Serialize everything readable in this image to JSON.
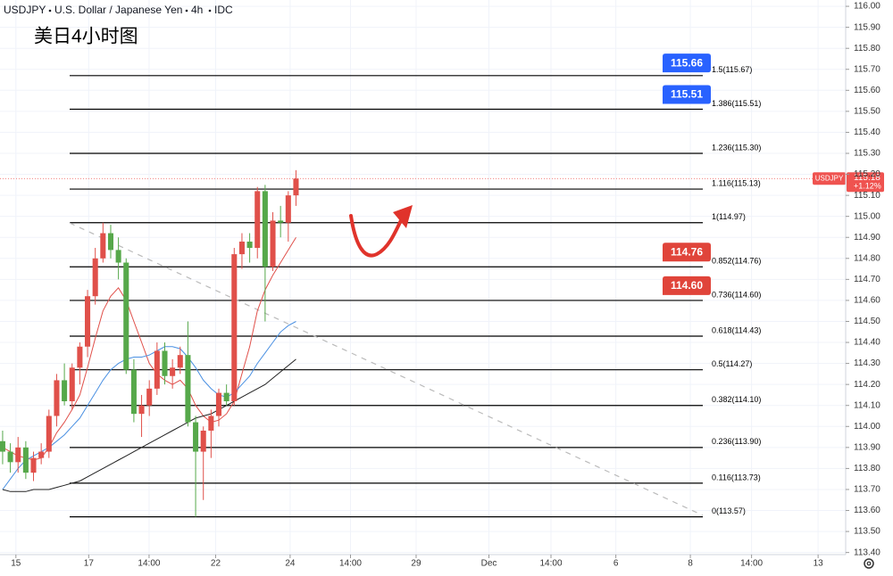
{
  "chart_data": {
    "type": "candlestick",
    "symbol_info": [
      "USDJPY",
      "U.S. Dollar / Japanese Yen",
      "4h",
      "IDC"
    ],
    "annotation": "美日4小时图",
    "up_color": "#e0504a",
    "down_color": "#56a84a",
    "candles": [
      {
        "open": 113.93,
        "high": 113.98,
        "low": 113.82,
        "close": 113.88
      },
      {
        "open": 113.88,
        "high": 113.92,
        "low": 113.78,
        "close": 113.83
      },
      {
        "open": 113.83,
        "high": 113.95,
        "low": 113.78,
        "close": 113.9
      },
      {
        "open": 113.9,
        "high": 113.93,
        "low": 113.75,
        "close": 113.78
      },
      {
        "open": 113.78,
        "high": 113.88,
        "low": 113.74,
        "close": 113.85
      },
      {
        "open": 113.85,
        "high": 113.92,
        "low": 113.82,
        "close": 113.88
      },
      {
        "open": 113.88,
        "high": 114.08,
        "low": 113.85,
        "close": 114.05
      },
      {
        "open": 114.05,
        "high": 114.25,
        "low": 114.0,
        "close": 114.22
      },
      {
        "open": 114.22,
        "high": 114.3,
        "low": 114.1,
        "close": 114.12
      },
      {
        "open": 114.12,
        "high": 114.3,
        "low": 114.08,
        "close": 114.28
      },
      {
        "open": 114.28,
        "high": 114.4,
        "low": 114.2,
        "close": 114.38
      },
      {
        "open": 114.38,
        "high": 114.65,
        "low": 114.33,
        "close": 114.62
      },
      {
        "open": 114.62,
        "high": 114.85,
        "low": 114.58,
        "close": 114.8
      },
      {
        "open": 114.8,
        "high": 114.97,
        "low": 114.78,
        "close": 114.92
      },
      {
        "open": 114.92,
        "high": 114.96,
        "low": 114.8,
        "close": 114.84
      },
      {
        "open": 114.84,
        "high": 114.9,
        "low": 114.7,
        "close": 114.78
      },
      {
        "open": 114.78,
        "high": 114.8,
        "low": 114.25,
        "close": 114.27
      },
      {
        "open": 114.27,
        "high": 114.32,
        "low": 114.02,
        "close": 114.06
      },
      {
        "open": 114.06,
        "high": 114.15,
        "low": 113.95,
        "close": 114.1
      },
      {
        "open": 114.1,
        "high": 114.22,
        "low": 114.05,
        "close": 114.18
      },
      {
        "open": 114.18,
        "high": 114.4,
        "low": 114.15,
        "close": 114.36
      },
      {
        "open": 114.36,
        "high": 114.4,
        "low": 114.2,
        "close": 114.24
      },
      {
        "open": 114.24,
        "high": 114.32,
        "low": 114.18,
        "close": 114.28
      },
      {
        "open": 114.28,
        "high": 114.38,
        "low": 114.25,
        "close": 114.34
      },
      {
        "open": 114.34,
        "high": 114.5,
        "low": 114.0,
        "close": 114.02
      },
      {
        "open": 114.02,
        "high": 114.05,
        "low": 113.57,
        "close": 113.88
      },
      {
        "open": 113.88,
        "high": 114.0,
        "low": 113.65,
        "close": 113.98
      },
      {
        "open": 113.98,
        "high": 114.08,
        "low": 113.85,
        "close": 114.05
      },
      {
        "open": 114.05,
        "high": 114.18,
        "low": 114.0,
        "close": 114.16
      },
      {
        "open": 114.16,
        "high": 114.2,
        "low": 114.1,
        "close": 114.12
      },
      {
        "open": 114.12,
        "high": 114.85,
        "low": 114.1,
        "close": 114.82
      },
      {
        "open": 114.82,
        "high": 114.92,
        "low": 114.75,
        "close": 114.88
      },
      {
        "open": 114.88,
        "high": 114.92,
        "low": 114.78,
        "close": 114.85
      },
      {
        "open": 114.85,
        "high": 115.14,
        "low": 114.8,
        "close": 115.12
      },
      {
        "open": 115.12,
        "high": 115.15,
        "low": 114.5,
        "close": 114.76
      },
      {
        "open": 114.76,
        "high": 115.02,
        "low": 114.74,
        "close": 114.98
      },
      {
        "open": 114.98,
        "high": 115.05,
        "low": 114.9,
        "close": 114.97
      },
      {
        "open": 114.97,
        "high": 115.12,
        "low": 114.88,
        "close": 115.1
      },
      {
        "open": 115.1,
        "high": 115.22,
        "low": 115.05,
        "close": 115.18
      }
    ],
    "moving_averages": [
      {
        "color": "#e0504a",
        "values": [
          113.9,
          113.88,
          113.86,
          113.85,
          113.84,
          113.85,
          113.9,
          113.97,
          114.02,
          114.08,
          114.15,
          114.28,
          114.42,
          114.55,
          114.62,
          114.66,
          114.6,
          114.5,
          114.4,
          114.3,
          114.25,
          114.22,
          114.2,
          114.22,
          114.18,
          114.1,
          114.05,
          114.02,
          114.03,
          114.06,
          114.12,
          114.25,
          114.38,
          114.55,
          114.65,
          114.72,
          114.78,
          114.84,
          114.9
        ]
      },
      {
        "color": "#4a90e2",
        "values": [
          113.7,
          113.75,
          113.8,
          113.84,
          113.86,
          113.88,
          113.9,
          113.93,
          113.96,
          114.0,
          114.04,
          114.1,
          114.16,
          114.22,
          114.27,
          114.3,
          114.32,
          114.33,
          114.33,
          114.34,
          114.36,
          114.38,
          114.38,
          114.37,
          114.33,
          114.28,
          114.22,
          114.18,
          114.15,
          114.14,
          114.16,
          114.2,
          114.24,
          114.3,
          114.35,
          114.4,
          114.45,
          114.48,
          114.5
        ]
      },
      {
        "color": "#222222",
        "values": [
          113.7,
          113.69,
          113.69,
          113.69,
          113.7,
          113.7,
          113.7,
          113.71,
          113.72,
          113.73,
          113.74,
          113.76,
          113.78,
          113.8,
          113.82,
          113.84,
          113.86,
          113.88,
          113.9,
          113.92,
          113.94,
          113.96,
          113.98,
          114.0,
          114.02,
          114.04,
          114.05,
          114.06,
          114.08,
          114.1,
          114.12,
          114.14,
          114.16,
          114.18,
          114.2,
          114.23,
          114.26,
          114.29,
          114.32
        ]
      }
    ],
    "fib_levels": [
      {
        "value": 115.67,
        "label": "1.5(115.67)"
      },
      {
        "value": 115.51,
        "label": "1.386(115.51)"
      },
      {
        "value": 115.3,
        "label": "1.236(115.30)"
      },
      {
        "value": 115.13,
        "label": "1.116(115.13)"
      },
      {
        "value": 114.97,
        "label": "1(114.97)"
      },
      {
        "value": 114.76,
        "label": "0.852(114.76)"
      },
      {
        "value": 114.6,
        "label": "0.736(114.60)"
      },
      {
        "value": 114.43,
        "label": "0.618(114.43)"
      },
      {
        "value": 114.27,
        "label": "0.5(114.27)"
      },
      {
        "value": 114.1,
        "label": "0.382(114.10)"
      },
      {
        "value": 113.9,
        "label": "0.236(113.90)"
      },
      {
        "value": 113.73,
        "label": "0.116(113.73)"
      },
      {
        "value": 113.57,
        "label": "0(113.57)"
      }
    ],
    "price_tags": [
      {
        "price": 115.66,
        "color": "#2962ff"
      },
      {
        "price": 115.51,
        "color": "#2962ff"
      },
      {
        "price": 114.76,
        "color": "#e0443a"
      },
      {
        "price": {
          "value": 114.6,
          "label": "114.60"
        },
        "color": "#e0443a"
      }
    ],
    "last_price": 115.18,
    "last_change": "+1.12%",
    "last_color": "#ef5350",
    "xlim": [
      -0.34,
      109.2
    ],
    "xticks": [
      {
        "value": 1.72,
        "label": "15"
      },
      {
        "value": 11.15,
        "label": "17"
      },
      {
        "value": 18.97,
        "label": "14:00"
      },
      {
        "value": 27.59,
        "label": "22"
      },
      {
        "value": 37.24,
        "label": "24"
      },
      {
        "value": 45.06,
        "label": "14:00"
      },
      {
        "value": 53.56,
        "label": "29"
      },
      {
        "value": 62.99,
        "label": "Dec"
      },
      {
        "value": 71.03,
        "label": "14:00"
      },
      {
        "value": 79.43,
        "label": "6"
      },
      {
        "value": 89.08,
        "label": "8"
      },
      {
        "value": 97.01,
        "label": "14:00"
      },
      {
        "value": 105.63,
        "label": "13"
      }
    ],
    "ylim": [
      113.39,
      116.03
    ],
    "yticks": [
      {
        "value": 113.4,
        "label": "113.40"
      },
      {
        "value": 113.5,
        "label": "113.50"
      },
      {
        "value": 113.6,
        "label": "113.60"
      },
      {
        "value": 113.7,
        "label": "113.70"
      },
      {
        "value": 113.8,
        "label": "113.80"
      },
      {
        "value": 113.9,
        "label": "113.90"
      },
      {
        "value": 114.0,
        "label": "114.00"
      },
      {
        "value": 114.1,
        "label": "114.10"
      },
      {
        "value": 114.2,
        "label": "114.20"
      },
      {
        "value": 114.3,
        "label": "114.30"
      },
      {
        "value": 114.4,
        "label": "114.40"
      },
      {
        "value": 114.5,
        "label": "114.50"
      },
      {
        "value": 114.6,
        "label": "114.60"
      },
      {
        "value": 114.7,
        "label": "114.70"
      },
      {
        "value": 114.8,
        "label": "114.80"
      },
      {
        "value": 114.9,
        "label": "114.90"
      },
      {
        "value": 115.0,
        "label": "115.00"
      },
      {
        "value": 115.1,
        "label": "115.10"
      },
      {
        "value": 115.2,
        "label": "115.20"
      },
      {
        "value": 115.3,
        "label": "115.30"
      },
      {
        "value": 115.4,
        "label": "115.40"
      },
      {
        "value": 115.5,
        "label": "115.50"
      },
      {
        "value": 115.6,
        "label": "115.60"
      },
      {
        "value": 115.7,
        "label": "115.70"
      },
      {
        "value": 115.8,
        "label": "115.80"
      },
      {
        "value": 115.9,
        "label": "115.90"
      },
      {
        "value": 116.0,
        "label": "116.00"
      }
    ],
    "grid": true
  }
}
